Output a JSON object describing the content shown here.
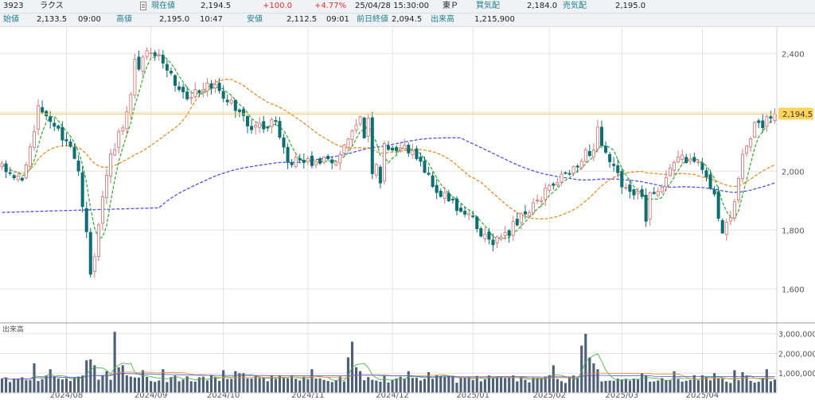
{
  "header": {
    "row1": {
      "code": "3923",
      "name": "ラクス",
      "current_label": "現在値",
      "current_value": "2,194.5",
      "change": "+100.0",
      "change_pct": "+4.77%",
      "datetime": "25/04/28 15:30:00",
      "market": "東Ｐ",
      "bid_label": "買気配",
      "bid_value": "2,184.0",
      "ask_label": "売気配",
      "ask_value": "2,195.0"
    },
    "row2": {
      "open_label": "始値",
      "open_value": "2,133.5",
      "open_time": "09:00",
      "high_label": "高値",
      "high_value": "2,195.0",
      "high_time": "10:47",
      "low_label": "安値",
      "low_value": "2,112.5",
      "low_time": "09:01",
      "prev_label": "前日終値",
      "prev_value": "2,094.5",
      "volume_label": "出来高",
      "volume_value": "1,215,900"
    }
  },
  "chart_data": {
    "type": "candlestick",
    "price_axis": {
      "ticks": [
        1600,
        1800,
        2000,
        2200,
        2400
      ],
      "tick_labels": [
        "1,600",
        "1,800",
        "2,000",
        "2,200",
        "2,400"
      ],
      "ylim": [
        1490,
        2490
      ]
    },
    "volume_title": "出来高",
    "volume_axis": {
      "ticks": [
        1000000,
        2000000,
        3000000
      ],
      "tick_labels": [
        "1,000,000",
        "2,000,000",
        "3,000,000"
      ],
      "ylim": [
        0,
        3150000
      ]
    },
    "current_price_label": "2,194.5",
    "current_price": 2194.5,
    "x_labels": [
      "2024/08",
      "2024/09",
      "2024/10",
      "2024/11",
      "2024/12",
      "2025/01",
      "2025/02",
      "2025/03",
      "2025/04"
    ],
    "x_label_index": [
      16,
      37,
      55,
      76,
      97,
      117,
      136,
      154,
      174
    ],
    "colors": {
      "up": "#f2a5a5",
      "up_edge": "#d87a7a",
      "down": "#0e6f73",
      "ma_short": "#39b33a",
      "ma_mid": "#ef8c26",
      "ma_long": "#5150e6",
      "volume": "#4e5f78",
      "price_line": "#f5c842",
      "grid": "#e3e3e3"
    },
    "waypoints": [
      [
        0,
        2020
      ],
      [
        5,
        1960
      ],
      [
        8,
        2120
      ],
      [
        9,
        2240
      ],
      [
        13,
        2150
      ],
      [
        18,
        2050
      ],
      [
        20,
        1970
      ],
      [
        21,
        1780
      ],
      [
        22,
        1650
      ],
      [
        23,
        1720
      ],
      [
        25,
        1900
      ],
      [
        27,
        2050
      ],
      [
        31,
        2200
      ],
      [
        33,
        2300
      ],
      [
        35,
        2400
      ],
      [
        39,
        2410
      ],
      [
        43,
        2300
      ],
      [
        46,
        2250
      ],
      [
        50,
        2290
      ],
      [
        53,
        2280
      ],
      [
        57,
        2230
      ],
      [
        61,
        2160
      ],
      [
        65,
        2150
      ],
      [
        68,
        2170
      ],
      [
        71,
        2040
      ],
      [
        75,
        2030
      ],
      [
        79,
        2040
      ],
      [
        82,
        2020
      ],
      [
        86,
        2110
      ],
      [
        89,
        2170
      ],
      [
        92,
        1980
      ],
      [
        95,
        2080
      ],
      [
        100,
        2080
      ],
      [
        104,
        2030
      ],
      [
        108,
        1940
      ],
      [
        112,
        1890
      ],
      [
        116,
        1850
      ],
      [
        119,
        1790
      ],
      [
        122,
        1760
      ],
      [
        125,
        1780
      ],
      [
        128,
        1830
      ],
      [
        133,
        1900
      ],
      [
        138,
        1970
      ],
      [
        142,
        2010
      ],
      [
        144,
        2050
      ],
      [
        148,
        2090
      ],
      [
        152,
        2020
      ],
      [
        155,
        1930
      ],
      [
        158,
        1920
      ],
      [
        161,
        1910
      ],
      [
        164,
        1960
      ],
      [
        167,
        2030
      ],
      [
        171,
        2050
      ],
      [
        175,
        1980
      ],
      [
        177,
        1920
      ],
      [
        179,
        1790
      ],
      [
        181,
        1830
      ],
      [
        184,
        2050
      ],
      [
        187,
        2150
      ],
      [
        189,
        2160
      ],
      [
        192,
        2194
      ]
    ],
    "events": {
      "20": 1880,
      "22": 1650,
      "33": 2380,
      "91": 2180,
      "94": 1960,
      "148": 2150,
      "160": 1830,
      "179": 1790
    },
    "volume": {
      "base": [
        500000,
        900000
      ],
      "spikes": {
        "8": 1500000,
        "12": 1200000,
        "21": 1650000,
        "22": 1700000,
        "23": 1400000,
        "26": 1100000,
        "28": 3100000,
        "29": 1300000,
        "30": 1400000,
        "35": 1150000,
        "40": 1200000,
        "55": 1150000,
        "58": 1100000,
        "59": 1000000,
        "60": 1000000,
        "77": 1200000,
        "86": 1800000,
        "87": 2600000,
        "88": 1300000,
        "89": 1100000,
        "101": 1100000,
        "106": 1050000,
        "137": 1400000,
        "144": 2400000,
        "145": 3000000,
        "146": 1800000,
        "147": 1500000,
        "148": 1200000,
        "159": 1000000,
        "167": 1100000,
        "177": 1000000,
        "182": 1150000,
        "184": 1050000,
        "190": 1200000
      }
    },
    "bar_count": 193
  }
}
